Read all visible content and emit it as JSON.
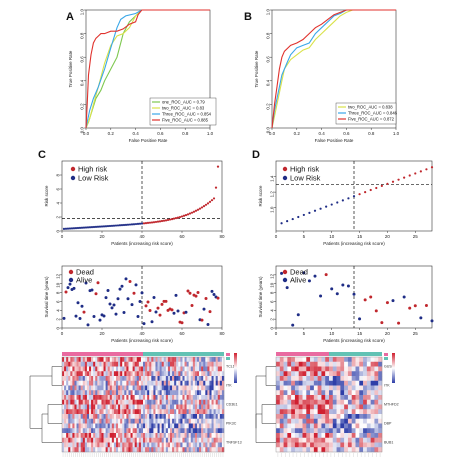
{
  "panel_letters": [
    "A",
    "B",
    "C",
    "D"
  ],
  "chart_data": [
    {
      "id": "A",
      "type": "line",
      "ylabel": "True Positive Rate",
      "xlabel": "False Positive Rate",
      "xlim": [
        0,
        1
      ],
      "ylim": [
        0,
        1
      ],
      "xticks": [
        "0.0",
        "0.2",
        "0.4",
        "0.6",
        "0.8",
        "1.0"
      ],
      "yticks": [
        "0.0",
        "0.2",
        "0.4",
        "0.6",
        "0.8",
        "1.0"
      ],
      "legend_position": "bottom-right",
      "series": [
        {
          "name": "one_ROC_AUC = 0.79",
          "color": "#7ec850",
          "x": [
            0,
            0.02,
            0.05,
            0.08,
            0.12,
            0.15,
            0.2,
            0.25,
            0.3,
            0.35,
            0.4,
            0.45,
            0.5,
            1.0
          ],
          "y": [
            0,
            0.05,
            0.15,
            0.25,
            0.32,
            0.4,
            0.5,
            0.6,
            0.8,
            0.9,
            0.95,
            1.0,
            1.0,
            1.0
          ]
        },
        {
          "name": "two_ROC_AUC = 0.83",
          "color": "#d9e24a",
          "x": [
            0,
            0.03,
            0.06,
            0.1,
            0.15,
            0.2,
            0.25,
            0.3,
            0.35,
            0.4,
            0.45,
            0.5,
            1.0
          ],
          "y": [
            0,
            0.08,
            0.2,
            0.35,
            0.55,
            0.7,
            0.78,
            0.8,
            0.85,
            0.95,
            1.0,
            1.0,
            1.0
          ]
        },
        {
          "name": "Three_ROC_AUC = 0.854",
          "color": "#3aa7e8",
          "x": [
            0,
            0.03,
            0.06,
            0.1,
            0.15,
            0.2,
            0.25,
            0.28,
            0.32,
            0.4,
            0.45,
            1.0
          ],
          "y": [
            0,
            0.15,
            0.25,
            0.35,
            0.5,
            0.68,
            0.85,
            0.92,
            0.95,
            0.97,
            1.0,
            1.0
          ],
          "label_hint": "Three"
        },
        {
          "name": "Five_ROC_AUC = 0.885",
          "color": "#e0322d",
          "x": [
            0,
            0.01,
            0.02,
            0.04,
            0.06,
            0.08,
            0.1,
            0.12,
            0.15,
            0.2,
            0.25,
            0.3,
            0.35,
            0.4,
            0.42,
            0.45,
            1.0
          ],
          "y": [
            0,
            0.2,
            0.45,
            0.62,
            0.72,
            0.76,
            0.78,
            0.8,
            0.8,
            0.82,
            0.82,
            0.84,
            0.88,
            0.9,
            0.96,
            1.0,
            1.0
          ]
        }
      ]
    },
    {
      "id": "B",
      "type": "line",
      "ylabel": "True Positive Rate",
      "xlabel": "False Positive Rate",
      "xlim": [
        0,
        1
      ],
      "ylim": [
        0,
        1
      ],
      "xticks": [
        "0.0",
        "0.2",
        "0.4",
        "0.6",
        "0.8",
        "1.0"
      ],
      "yticks": [
        "0.0",
        "0.2",
        "0.4",
        "0.6",
        "0.8",
        "1.0"
      ],
      "legend_position": "bottom-right",
      "series": [
        {
          "name": "two_ROC_AUC = 0.838",
          "color": "#d9e24a",
          "x": [
            0,
            0.02,
            0.05,
            0.08,
            0.1,
            0.15,
            0.2,
            0.25,
            0.3,
            0.35,
            0.4,
            0.45,
            0.5,
            0.55,
            0.6,
            0.65,
            1.0
          ],
          "y": [
            0,
            0.1,
            0.25,
            0.4,
            0.5,
            0.58,
            0.62,
            0.66,
            0.68,
            0.75,
            0.8,
            0.85,
            0.9,
            0.95,
            0.98,
            1.0,
            1.0
          ]
        },
        {
          "name": "Three_ROC_AUC = 0.846",
          "color": "#3aa7e8",
          "x": [
            0,
            0.02,
            0.05,
            0.08,
            0.12,
            0.15,
            0.2,
            0.25,
            0.3,
            0.35,
            0.4,
            0.45,
            0.5,
            0.55,
            0.6,
            1.0
          ],
          "y": [
            0,
            0.15,
            0.3,
            0.45,
            0.55,
            0.62,
            0.68,
            0.7,
            0.72,
            0.8,
            0.85,
            0.9,
            0.95,
            0.97,
            1.0,
            1.0
          ]
        },
        {
          "name": "Five_ROC_AUC = 0.872",
          "color": "#e0322d",
          "x": [
            0,
            0.02,
            0.04,
            0.06,
            0.08,
            0.1,
            0.15,
            0.2,
            0.25,
            0.3,
            0.35,
            0.4,
            0.45,
            0.5,
            0.6,
            1.0
          ],
          "y": [
            0,
            0.2,
            0.35,
            0.5,
            0.6,
            0.65,
            0.7,
            0.72,
            0.75,
            0.8,
            0.85,
            0.88,
            0.92,
            0.96,
            1.0,
            1.0
          ]
        }
      ]
    },
    {
      "id": "C-risk",
      "type": "scatter",
      "ylabel": "Risk score",
      "xlabel": "Patients (increasing risk score)",
      "xlim": [
        0,
        80
      ],
      "ylim": [
        0,
        10
      ],
      "xticks": [
        "0",
        "20",
        "40",
        "60",
        "80"
      ],
      "yticks": [
        "0",
        "2",
        "4",
        "6",
        "8"
      ],
      "cutoff_x": 40,
      "cutoff_y": 1.8,
      "legend_position": "top-left",
      "series": [
        {
          "name": "High risk",
          "color": "#c0272d"
        },
        {
          "name": "Low Risk",
          "color": "#1f2d86"
        }
      ],
      "n_points": 78
    },
    {
      "id": "D-risk",
      "type": "scatter",
      "ylabel": "Risk score",
      "xlabel": "Patients (increasing risk score)",
      "xlim": [
        0,
        28
      ],
      "ylim": [
        0.7,
        1.6
      ],
      "xticks": [
        "0",
        "5",
        "10",
        "15",
        "20",
        "25"
      ],
      "yticks": [
        "1.0",
        "1.2",
        "1.4"
      ],
      "cutoff_x": 14,
      "cutoff_y": 1.3,
      "legend_position": "top-left",
      "series": [
        {
          "name": "High risk",
          "color": "#c0272d"
        },
        {
          "name": "Low Risk",
          "color": "#1f2d86"
        }
      ],
      "n_points": 28
    },
    {
      "id": "C-survival",
      "type": "scatter",
      "ylabel": "Survival time (years)",
      "xlabel": "Patients (increasing risk score)",
      "xlim": [
        0,
        80
      ],
      "ylim": [
        0,
        14
      ],
      "xticks": [
        "0",
        "20",
        "40",
        "60",
        "80"
      ],
      "yticks": [
        "0",
        "2",
        "4",
        "6",
        "8",
        "10",
        "12"
      ],
      "cutoff_x": 40,
      "legend_position": "top-left",
      "series": [
        {
          "name": "Dead",
          "color": "#c0272d"
        },
        {
          "name": "Alive",
          "color": "#1f2d86"
        }
      ]
    },
    {
      "id": "D-survival",
      "type": "scatter",
      "ylabel": "Survival time (years)",
      "xlabel": "Patients (increasing risk score)",
      "xlim": [
        0,
        28
      ],
      "ylim": [
        0,
        14
      ],
      "xticks": [
        "0",
        "5",
        "10",
        "15",
        "20",
        "25"
      ],
      "yticks": [
        "0",
        "2",
        "4",
        "6",
        "8",
        "10",
        "12"
      ],
      "cutoff_x": 14,
      "legend_position": "top-left",
      "series": [
        {
          "name": "Dead",
          "color": "#c0272d"
        },
        {
          "name": "Alive",
          "color": "#1f2d86"
        }
      ]
    },
    {
      "id": "C-heatmap",
      "type": "heatmap",
      "rows": [
        "TCL1A",
        "ITK",
        "CD3E1",
        "PIK3C",
        "TNFSF13"
      ],
      "ncols": 78,
      "group_colors": [
        "#e96aa0",
        "#62c2b4"
      ],
      "scale_colors": [
        "#2e3ea8",
        "#ffffff",
        "#d02030"
      ]
    },
    {
      "id": "D-heatmap",
      "type": "heatmap",
      "rows": [
        "GUSB",
        "ITK",
        "MTHFD2",
        "DBP",
        "BUB1"
      ],
      "ncols": 28,
      "group_colors": [
        "#e96aa0",
        "#62c2b4"
      ],
      "scale_colors": [
        "#2e3ea8",
        "#ffffff",
        "#d02030"
      ]
    }
  ]
}
